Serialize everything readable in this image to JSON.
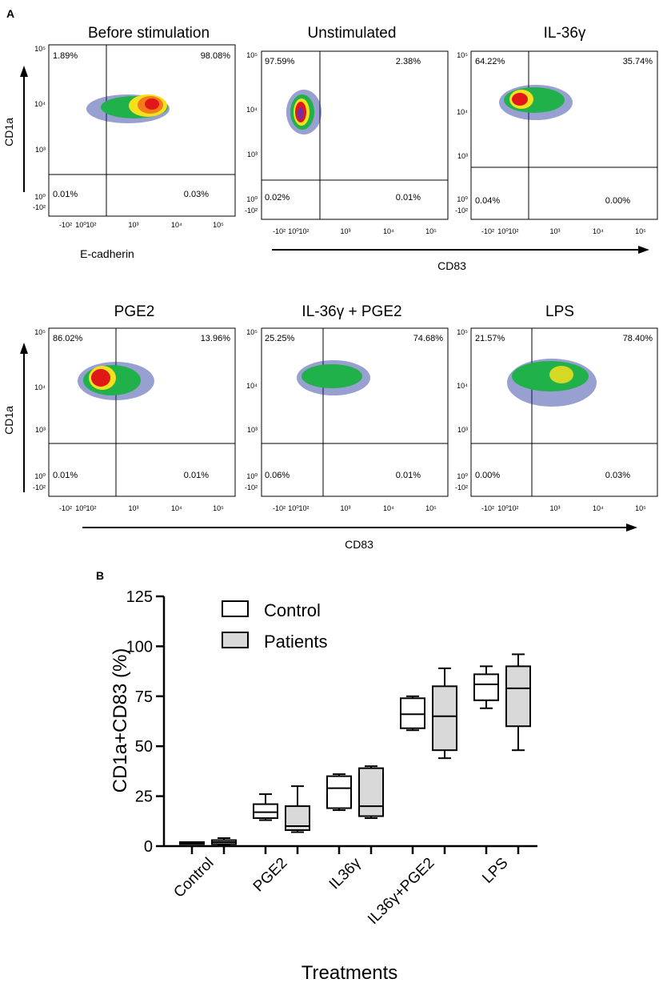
{
  "panel_a": {
    "label": "A",
    "y_axis_label": "CD1a",
    "x_axis_label_first": "E-cadherin",
    "x_axis_label_shared": "CD83",
    "y_ticks": [
      "10⁵",
      "10⁴",
      "10³",
      "10⁰",
      "-10²"
    ],
    "x_ticks": [
      "-10²",
      "10⁰",
      "10²",
      "10³",
      "10⁴",
      "10⁵"
    ],
    "plots": [
      {
        "title": "Before stimulation",
        "q_ul": "1.89%",
        "q_ur": "98.08%",
        "q_ll": "0.01%",
        "q_lr": "0.03%"
      },
      {
        "title": "Unstimulated",
        "q_ul": "97.59%",
        "q_ur": "2.38%",
        "q_ll": "0.02%",
        "q_lr": "0.01%"
      },
      {
        "title": "IL-36γ",
        "q_ul": "64.22%",
        "q_ur": "35.74%",
        "q_ll": "0.04%",
        "q_lr": "0.00%"
      },
      {
        "title": "PGE2",
        "q_ul": "86.02%",
        "q_ur": "13.96%",
        "q_ll": "0.01%",
        "q_lr": "0.01%"
      },
      {
        "title": "IL-36γ + PGE2",
        "q_ul": "25.25%",
        "q_ur": "74.68%",
        "q_ll": "0.06%",
        "q_lr": "0.01%"
      },
      {
        "title": "LPS",
        "q_ul": "21.57%",
        "q_ur": "78.40%",
        "q_ll": "0.00%",
        "q_lr": "0.03%"
      }
    ]
  },
  "panel_b": {
    "label": "B",
    "legend": {
      "control": "Control",
      "patients": "Patients"
    },
    "colors": {
      "control": "#ffffff",
      "patients": "#d9d9d9",
      "stroke": "#000000"
    }
  },
  "chart_data": {
    "type": "box",
    "title": "",
    "ylabel": "CD1a+CD83 (%)",
    "xlabel": "Treatments",
    "ylim": [
      0,
      125
    ],
    "yticks": [
      0,
      25,
      50,
      75,
      100,
      125
    ],
    "categories": [
      "Control",
      "PGE2",
      "IL36γ",
      "IL36γ+PGE2",
      "LPS"
    ],
    "series": [
      {
        "name": "Control",
        "boxes": [
          {
            "min": 1,
            "q1": 1,
            "median": 1.5,
            "q3": 2,
            "max": 2
          },
          {
            "min": 13,
            "q1": 14,
            "median": 17,
            "q3": 21,
            "max": 26
          },
          {
            "min": 18,
            "q1": 19,
            "median": 29,
            "q3": 35,
            "max": 36
          },
          {
            "min": 58,
            "q1": 59,
            "median": 66,
            "q3": 74,
            "max": 75
          },
          {
            "min": 69,
            "q1": 73,
            "median": 81,
            "q3": 86,
            "max": 90
          }
        ]
      },
      {
        "name": "Patients",
        "boxes": [
          {
            "min": 0.5,
            "q1": 1,
            "median": 2,
            "q3": 3,
            "max": 4
          },
          {
            "min": 7,
            "q1": 8,
            "median": 10,
            "q3": 20,
            "max": 30
          },
          {
            "min": 14,
            "q1": 15,
            "median": 20,
            "q3": 39,
            "max": 40
          },
          {
            "min": 44,
            "q1": 48,
            "median": 65,
            "q3": 80,
            "max": 89
          },
          {
            "min": 48,
            "q1": 60,
            "median": 79,
            "q3": 90,
            "max": 96
          }
        ]
      }
    ]
  }
}
